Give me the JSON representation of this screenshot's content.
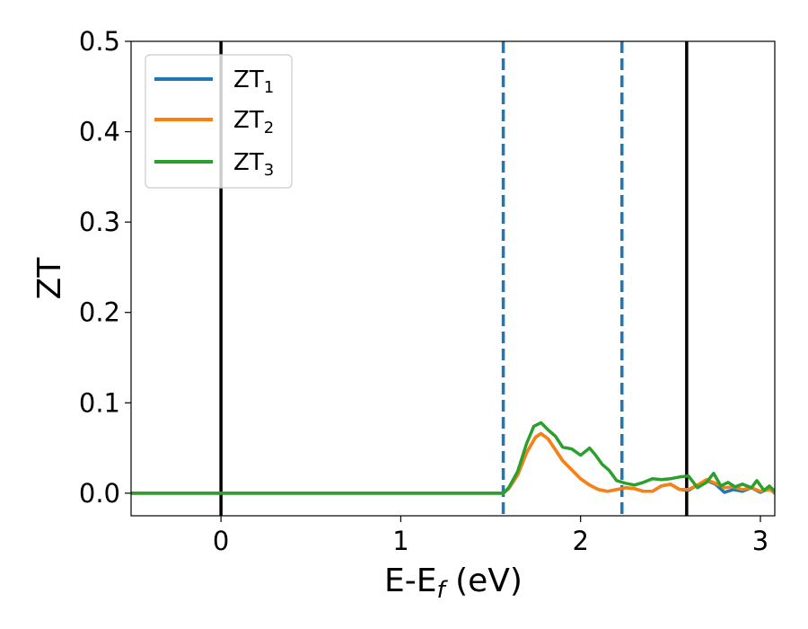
{
  "chart_data": {
    "type": "line",
    "xlabel_main": "E-E",
    "xlabel_sub": "f",
    "xlabel_unit": " (eV)",
    "ylabel": "ZT",
    "xlim": [
      -0.5,
      3.08
    ],
    "ylim": [
      -0.025,
      0.5
    ],
    "x_ticks": [
      0,
      1,
      2,
      3
    ],
    "x_tick_labels": [
      "0",
      "1",
      "2",
      "3"
    ],
    "y_ticks": [
      0.0,
      0.1,
      0.2,
      0.3,
      0.4,
      0.5
    ],
    "y_tick_labels": [
      "0.0",
      "0.1",
      "0.2",
      "0.3",
      "0.4",
      "0.5"
    ],
    "grid": false,
    "legend_position": "top-left",
    "solid_vlines": [
      0.0,
      2.59
    ],
    "dashed_vlines": [
      1.57,
      2.23
    ],
    "colors": {
      "ZT1": "#1f77b4",
      "ZT2": "#ff7f0e",
      "ZT3": "#2ca02c",
      "solid_vline": "#000000",
      "dashed_vline": "#1f77b4"
    },
    "series": [
      {
        "key": "ZT1",
        "legend_main": "ZT",
        "legend_sub": "1",
        "x": [
          -0.5,
          1.5,
          1.57,
          1.6,
          1.65,
          1.7,
          1.75,
          1.78,
          1.82,
          1.86,
          1.9,
          1.95,
          2.0,
          2.05,
          2.1,
          2.15,
          2.2,
          2.25,
          2.3,
          2.35,
          2.4,
          2.45,
          2.5,
          2.55,
          2.6,
          2.65,
          2.7,
          2.75,
          2.8,
          2.85,
          2.9,
          2.95,
          3.0,
          3.05,
          3.08
        ],
        "y": [
          0.0,
          0.0,
          0.0,
          0.005,
          0.02,
          0.045,
          0.062,
          0.066,
          0.06,
          0.048,
          0.036,
          0.026,
          0.016,
          0.009,
          0.004,
          0.002,
          0.004,
          0.006,
          0.005,
          0.002,
          0.002,
          0.008,
          0.01,
          0.004,
          0.003,
          0.009,
          0.014,
          0.01,
          0.001,
          0.004,
          0.002,
          0.006,
          0.001,
          0.005,
          0.0
        ]
      },
      {
        "key": "ZT2",
        "legend_main": "ZT",
        "legend_sub": "2",
        "x": [
          -0.5,
          1.5,
          1.57,
          1.6,
          1.65,
          1.7,
          1.75,
          1.78,
          1.82,
          1.86,
          1.9,
          1.95,
          2.0,
          2.05,
          2.1,
          2.15,
          2.2,
          2.25,
          2.3,
          2.35,
          2.4,
          2.45,
          2.5,
          2.55,
          2.6,
          2.65,
          2.7,
          2.75,
          2.8,
          2.85,
          2.9,
          2.95,
          3.0,
          3.05,
          3.08
        ],
        "y": [
          0.0,
          0.0,
          0.0,
          0.005,
          0.02,
          0.045,
          0.062,
          0.066,
          0.06,
          0.048,
          0.036,
          0.026,
          0.016,
          0.009,
          0.004,
          0.002,
          0.004,
          0.006,
          0.005,
          0.002,
          0.002,
          0.008,
          0.01,
          0.004,
          0.004,
          0.009,
          0.015,
          0.011,
          0.006,
          0.007,
          0.004,
          0.006,
          0.002,
          0.004,
          0.001
        ]
      },
      {
        "key": "ZT3",
        "legend_main": "ZT",
        "legend_sub": "3",
        "x": [
          -0.5,
          1.5,
          1.57,
          1.6,
          1.65,
          1.7,
          1.74,
          1.78,
          1.82,
          1.86,
          1.9,
          1.95,
          2.0,
          2.05,
          2.08,
          2.12,
          2.16,
          2.2,
          2.25,
          2.3,
          2.35,
          2.4,
          2.45,
          2.5,
          2.55,
          2.6,
          2.65,
          2.7,
          2.74,
          2.78,
          2.82,
          2.86,
          2.9,
          2.95,
          2.98,
          3.02,
          3.05,
          3.08
        ],
        "y": [
          0.0,
          0.0,
          0.0,
          0.006,
          0.024,
          0.055,
          0.074,
          0.078,
          0.07,
          0.063,
          0.051,
          0.049,
          0.042,
          0.05,
          0.043,
          0.032,
          0.025,
          0.014,
          0.011,
          0.009,
          0.012,
          0.016,
          0.015,
          0.016,
          0.018,
          0.019,
          0.006,
          0.012,
          0.022,
          0.008,
          0.012,
          0.007,
          0.01,
          0.006,
          0.014,
          0.003,
          0.008,
          0.002
        ]
      }
    ]
  }
}
